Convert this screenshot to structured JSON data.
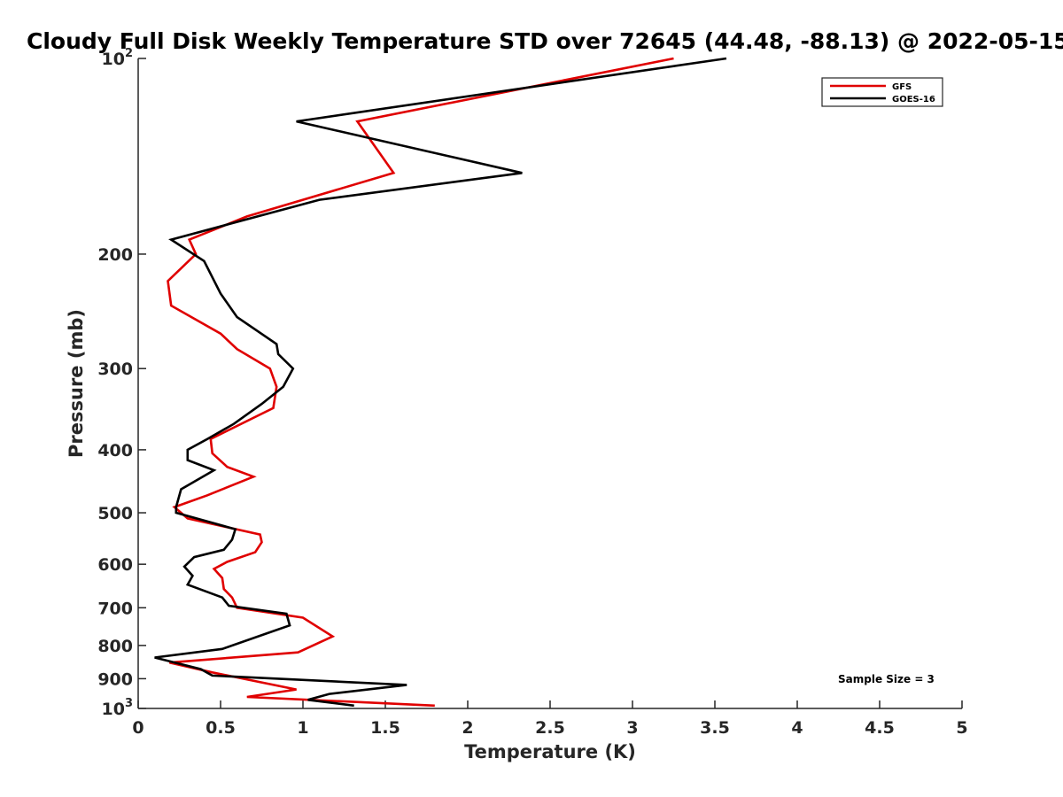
{
  "chart_data": {
    "type": "line",
    "title": "Cloudy Full Disk Weekly Temperature STD over 72645 (44.48, -88.13) @ 2022-05-15",
    "xlabel": "Temperature (K)",
    "ylabel": "Pressure (mb)",
    "xlim": [
      0,
      5
    ],
    "ylim": [
      100,
      1000
    ],
    "y_scale": "log",
    "y_reversed": true,
    "grid": false,
    "legend_position": "top-right",
    "x_ticks": [
      {
        "value": 0,
        "label": "0"
      },
      {
        "value": 0.5,
        "label": "0.5"
      },
      {
        "value": 1,
        "label": "1"
      },
      {
        "value": 1.5,
        "label": "1.5"
      },
      {
        "value": 2,
        "label": "2"
      },
      {
        "value": 2.5,
        "label": "2.5"
      },
      {
        "value": 3,
        "label": "3"
      },
      {
        "value": 3.5,
        "label": "3.5"
      },
      {
        "value": 4,
        "label": "4"
      },
      {
        "value": 4.5,
        "label": "4.5"
      },
      {
        "value": 5,
        "label": "5"
      }
    ],
    "y_ticks": [
      {
        "value": 100,
        "label": "10",
        "exp": "2"
      },
      {
        "value": 200,
        "label": "200"
      },
      {
        "value": 300,
        "label": "300"
      },
      {
        "value": 400,
        "label": "400"
      },
      {
        "value": 500,
        "label": "500"
      },
      {
        "value": 600,
        "label": "600"
      },
      {
        "value": 700,
        "label": "700"
      },
      {
        "value": 800,
        "label": "800"
      },
      {
        "value": 900,
        "label": "900"
      },
      {
        "value": 1000,
        "label": "10",
        "exp": "3"
      }
    ],
    "annotation": "Sample Size = 3",
    "series": [
      {
        "name": "GFS",
        "color": "#e00000",
        "points": [
          [
            3.25,
            100
          ],
          [
            1.33,
            125
          ],
          [
            1.55,
            150
          ],
          [
            0.66,
            175
          ],
          [
            0.31,
            190
          ],
          [
            0.35,
            200
          ],
          [
            0.18,
            220
          ],
          [
            0.2,
            240
          ],
          [
            0.5,
            265
          ],
          [
            0.6,
            280
          ],
          [
            0.8,
            300
          ],
          [
            0.84,
            320
          ],
          [
            0.82,
            345
          ],
          [
            0.44,
            385
          ],
          [
            0.45,
            405
          ],
          [
            0.54,
            425
          ],
          [
            0.7,
            440
          ],
          [
            0.42,
            470
          ],
          [
            0.22,
            490
          ],
          [
            0.3,
            510
          ],
          [
            0.74,
            540
          ],
          [
            0.75,
            555
          ],
          [
            0.71,
            575
          ],
          [
            0.54,
            595
          ],
          [
            0.46,
            610
          ],
          [
            0.51,
            630
          ],
          [
            0.52,
            655
          ],
          [
            0.57,
            675
          ],
          [
            0.6,
            700
          ],
          [
            1.0,
            725
          ],
          [
            1.18,
            775
          ],
          [
            0.97,
            820
          ],
          [
            0.19,
            850
          ],
          [
            0.45,
            880
          ],
          [
            0.96,
            935
          ],
          [
            0.66,
            960
          ],
          [
            1.8,
            990
          ]
        ]
      },
      {
        "name": "GOES-16",
        "color": "#000000",
        "points": [
          [
            3.57,
            100
          ],
          [
            0.96,
            125
          ],
          [
            2.33,
            150
          ],
          [
            1.1,
            165
          ],
          [
            0.2,
            190
          ],
          [
            0.4,
            205
          ],
          [
            0.5,
            230
          ],
          [
            0.6,
            250
          ],
          [
            0.84,
            275
          ],
          [
            0.85,
            285
          ],
          [
            0.94,
            300
          ],
          [
            0.88,
            320
          ],
          [
            0.75,
            340
          ],
          [
            0.58,
            365
          ],
          [
            0.42,
            385
          ],
          [
            0.3,
            400
          ],
          [
            0.3,
            415
          ],
          [
            0.46,
            430
          ],
          [
            0.26,
            460
          ],
          [
            0.23,
            490
          ],
          [
            0.23,
            500
          ],
          [
            0.59,
            530
          ],
          [
            0.57,
            550
          ],
          [
            0.52,
            570
          ],
          [
            0.34,
            585
          ],
          [
            0.28,
            605
          ],
          [
            0.33,
            625
          ],
          [
            0.3,
            645
          ],
          [
            0.51,
            675
          ],
          [
            0.55,
            695
          ],
          [
            0.9,
            715
          ],
          [
            0.92,
            745
          ],
          [
            0.79,
            765
          ],
          [
            0.51,
            810
          ],
          [
            0.1,
            835
          ],
          [
            0.38,
            870
          ],
          [
            0.45,
            890
          ],
          [
            1.63,
            920
          ],
          [
            1.16,
            950
          ],
          [
            1.03,
            970
          ],
          [
            1.31,
            990
          ]
        ]
      }
    ]
  }
}
